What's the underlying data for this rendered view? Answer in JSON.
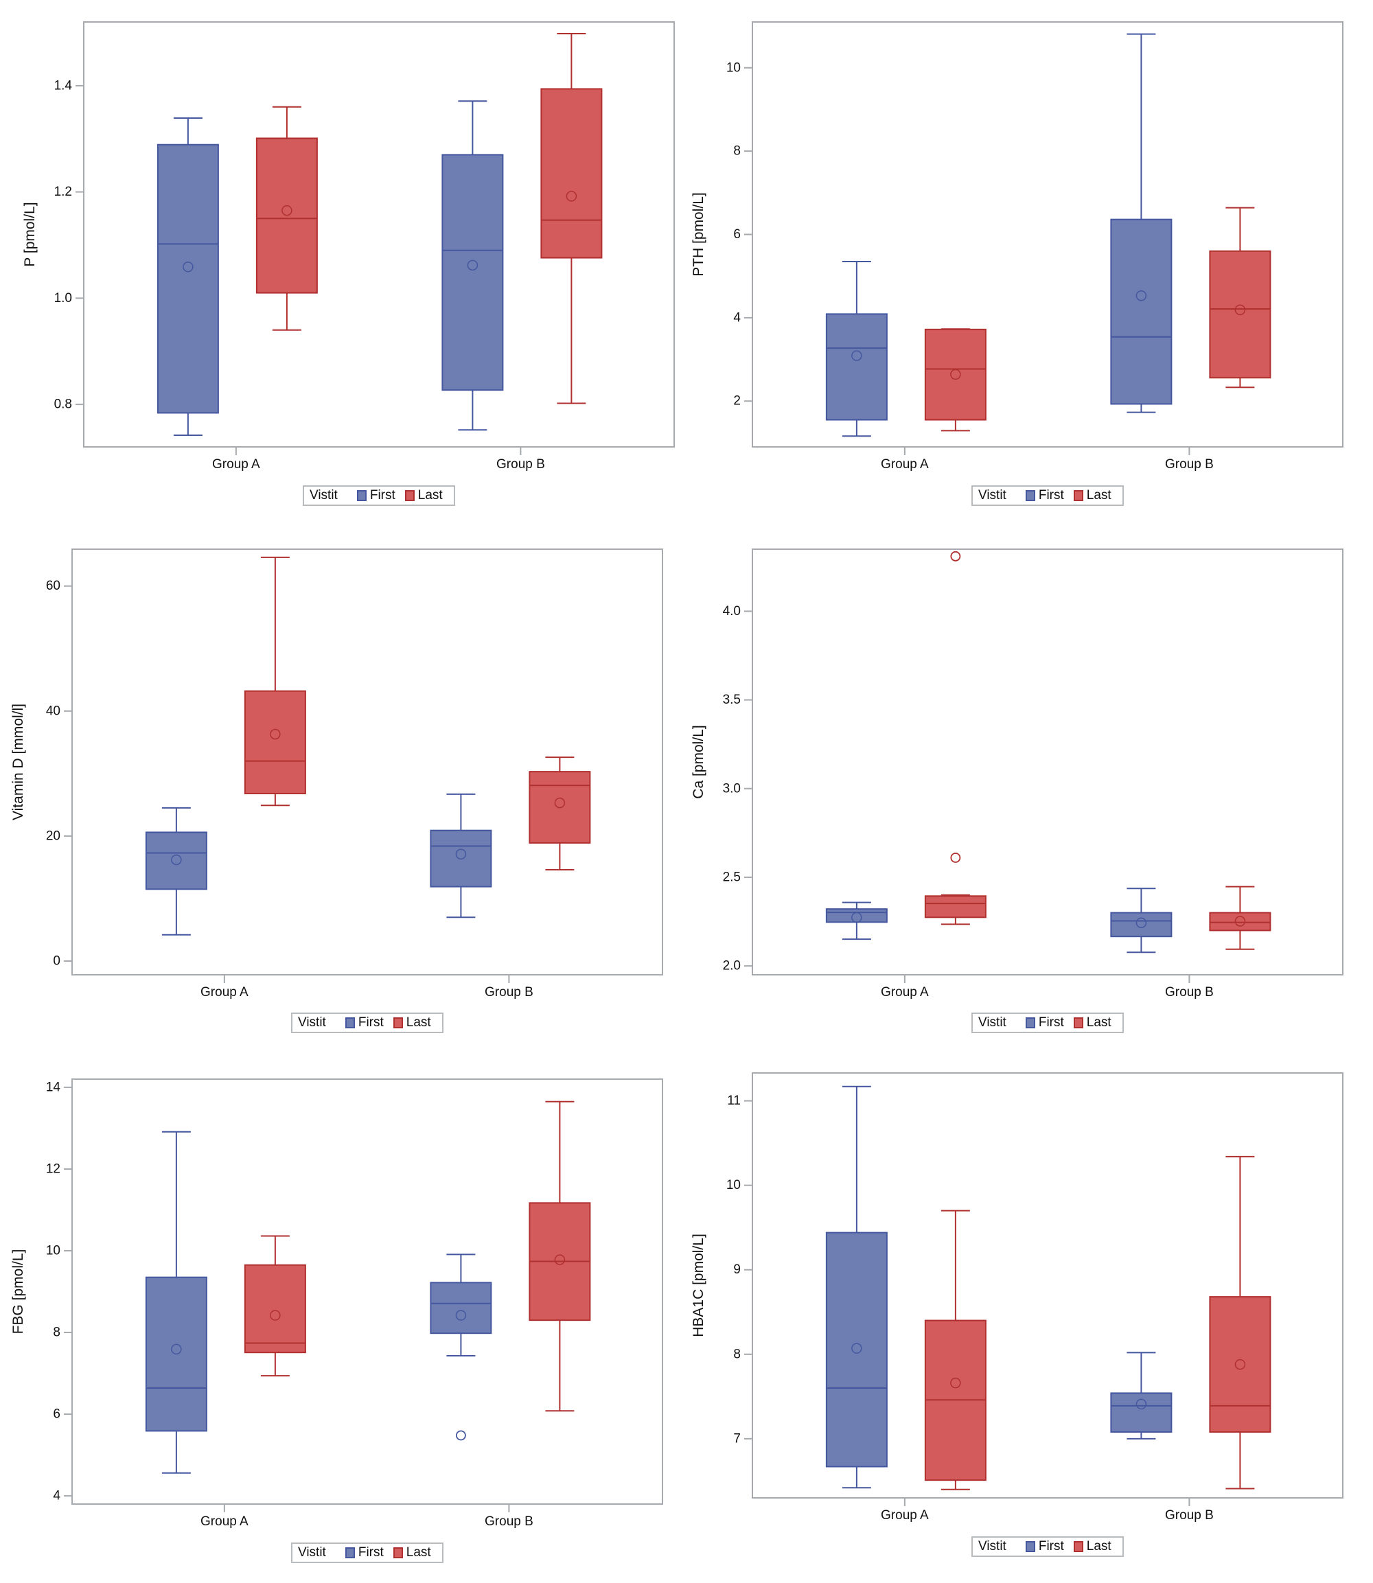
{
  "legend": {
    "title": "Vistit",
    "entries": [
      {
        "name": "First",
        "fill": "#6E7EB2",
        "stroke": "#44579F"
      },
      {
        "name": "Last",
        "fill": "#D35B5B",
        "stroke": "#B0302F"
      }
    ]
  },
  "chart_data": [
    {
      "type": "box",
      "ylabel": "P [pmol/L]",
      "categories": [
        "Group A",
        "Group B"
      ],
      "ylim": [
        0.72,
        1.52
      ],
      "yticks": [
        0.8,
        1.0,
        1.2,
        1.4
      ],
      "tick_labels": [
        "0.8",
        "1.0",
        "1.2",
        "1.4"
      ],
      "series": [
        {
          "name": "First",
          "boxes": [
            {
              "min": 0.742,
              "q1": 0.784,
              "median": 1.102,
              "mean": 1.059,
              "q3": 1.289,
              "max": 1.339,
              "outliers": []
            },
            {
              "min": 0.752,
              "q1": 0.827,
              "median": 1.09,
              "mean": 1.062,
              "q3": 1.27,
              "max": 1.371,
              "outliers": []
            }
          ]
        },
        {
          "name": "Last",
          "boxes": [
            {
              "min": 0.94,
              "q1": 1.01,
              "median": 1.15,
              "mean": 1.165,
              "q3": 1.301,
              "max": 1.36,
              "outliers": []
            },
            {
              "min": 0.802,
              "q1": 1.076,
              "median": 1.147,
              "mean": 1.192,
              "q3": 1.394,
              "max": 1.498,
              "outliers": []
            }
          ]
        }
      ]
    },
    {
      "type": "box",
      "ylabel": "PTH [pmol/L]",
      "categories": [
        "Group A",
        "Group B"
      ],
      "ylim": [
        0.9,
        11.1
      ],
      "yticks": [
        2,
        4,
        6,
        8,
        10
      ],
      "tick_labels": [
        "2",
        "4",
        "6",
        "8",
        "10"
      ],
      "series": [
        {
          "name": "First",
          "boxes": [
            {
              "min": 1.16,
              "q1": 1.55,
              "median": 3.27,
              "mean": 3.09,
              "q3": 4.09,
              "max": 5.35,
              "outliers": []
            },
            {
              "min": 1.73,
              "q1": 1.93,
              "median": 3.54,
              "mean": 4.53,
              "q3": 6.36,
              "max": 10.81,
              "outliers": []
            }
          ]
        },
        {
          "name": "Last",
          "boxes": [
            {
              "min": 1.29,
              "q1": 1.55,
              "median": 2.77,
              "mean": 2.64,
              "q3": 3.72,
              "max": 3.73,
              "outliers": []
            },
            {
              "min": 2.33,
              "q1": 2.56,
              "median": 4.21,
              "mean": 4.19,
              "q3": 5.6,
              "max": 6.64,
              "outliers": []
            }
          ]
        }
      ]
    },
    {
      "type": "box",
      "ylabel": "Vitamin D [mmol/l]",
      "categories": [
        "Group A",
        "Group B"
      ],
      "ylim": [
        -2.2,
        65.9
      ],
      "yticks": [
        0,
        20,
        40,
        60
      ],
      "tick_labels": [
        "0",
        "20",
        "40",
        "60"
      ],
      "series": [
        {
          "name": "First",
          "boxes": [
            {
              "min": 4.2,
              "q1": 11.5,
              "median": 17.3,
              "mean": 16.2,
              "q3": 20.6,
              "max": 24.5,
              "outliers": []
            },
            {
              "min": 7.0,
              "q1": 11.9,
              "median": 18.4,
              "mean": 17.1,
              "q3": 20.9,
              "max": 26.7,
              "outliers": []
            }
          ]
        },
        {
          "name": "Last",
          "boxes": [
            {
              "min": 24.9,
              "q1": 26.8,
              "median": 32.0,
              "mean": 36.3,
              "q3": 43.2,
              "max": 64.6,
              "outliers": []
            },
            {
              "min": 14.6,
              "q1": 18.9,
              "median": 28.1,
              "mean": 25.3,
              "q3": 30.3,
              "max": 32.6,
              "outliers": []
            }
          ]
        }
      ]
    },
    {
      "type": "box",
      "ylabel": "Ca [pmol/L]",
      "categories": [
        "Group A",
        "Group B"
      ],
      "ylim": [
        1.95,
        4.35
      ],
      "yticks": [
        2.0,
        2.5,
        3.0,
        3.5,
        4.0
      ],
      "tick_labels": [
        "2.0",
        "2.5",
        "3.0",
        "3.5",
        "4.0"
      ],
      "series": [
        {
          "name": "First",
          "boxes": [
            {
              "min": 2.151,
              "q1": 2.247,
              "median": 2.302,
              "mean": 2.273,
              "q3": 2.321,
              "max": 2.358,
              "outliers": []
            },
            {
              "min": 2.077,
              "q1": 2.166,
              "median": 2.254,
              "mean": 2.243,
              "q3": 2.3,
              "max": 2.437,
              "outliers": []
            }
          ]
        },
        {
          "name": "Last",
          "boxes": [
            {
              "min": 2.235,
              "q1": 2.274,
              "median": 2.352,
              "mean": null,
              "q3": 2.394,
              "max": 2.4,
              "outliers": [
                4.31,
                2.61
              ]
            },
            {
              "min": 2.094,
              "q1": 2.2,
              "median": 2.245,
              "mean": 2.252,
              "q3": 2.3,
              "max": 2.447,
              "outliers": []
            }
          ]
        }
      ]
    },
    {
      "type": "box",
      "ylabel": "FBG [pmol/L]",
      "categories": [
        "Group A",
        "Group B"
      ],
      "ylim": [
        3.8,
        14.2
      ],
      "yticks": [
        4,
        6,
        8,
        10,
        12,
        14
      ],
      "tick_labels": [
        "4",
        "6",
        "8",
        "10",
        "12",
        "14"
      ],
      "series": [
        {
          "name": "First",
          "boxes": [
            {
              "min": 4.56,
              "q1": 5.59,
              "median": 6.64,
              "mean": 7.59,
              "q3": 9.35,
              "max": 12.91,
              "outliers": []
            },
            {
              "min": 7.43,
              "q1": 7.98,
              "median": 8.71,
              "mean": 8.42,
              "q3": 9.22,
              "max": 9.91,
              "outliers": [
                5.48
              ]
            }
          ]
        },
        {
          "name": "Last",
          "boxes": [
            {
              "min": 6.94,
              "q1": 7.51,
              "median": 7.74,
              "mean": 8.42,
              "q3": 9.65,
              "max": 10.36,
              "outliers": []
            },
            {
              "min": 6.08,
              "q1": 8.3,
              "median": 9.74,
              "mean": 9.78,
              "q3": 11.17,
              "max": 13.65,
              "outliers": []
            }
          ]
        }
      ]
    },
    {
      "type": "box",
      "ylabel": "HBA1C [pmol/L]",
      "categories": [
        "Group A",
        "Group B"
      ],
      "ylim": [
        6.3,
        11.33
      ],
      "yticks": [
        7,
        8,
        9,
        10,
        11
      ],
      "tick_labels": [
        "7",
        "8",
        "9",
        "10",
        "11"
      ],
      "series": [
        {
          "name": "First",
          "boxes": [
            {
              "min": 6.42,
              "q1": 6.67,
              "median": 7.6,
              "mean": 8.07,
              "q3": 9.44,
              "max": 11.17,
              "outliers": []
            },
            {
              "min": 7.0,
              "q1": 7.08,
              "median": 7.39,
              "mean": 7.41,
              "q3": 7.54,
              "max": 8.02,
              "outliers": []
            }
          ]
        },
        {
          "name": "Last",
          "boxes": [
            {
              "min": 6.4,
              "q1": 6.51,
              "median": 7.46,
              "mean": 7.66,
              "q3": 8.4,
              "max": 9.7,
              "outliers": []
            },
            {
              "min": 6.41,
              "q1": 7.08,
              "median": 7.39,
              "mean": 7.88,
              "q3": 8.68,
              "max": 10.34,
              "outliers": []
            }
          ]
        }
      ]
    }
  ]
}
